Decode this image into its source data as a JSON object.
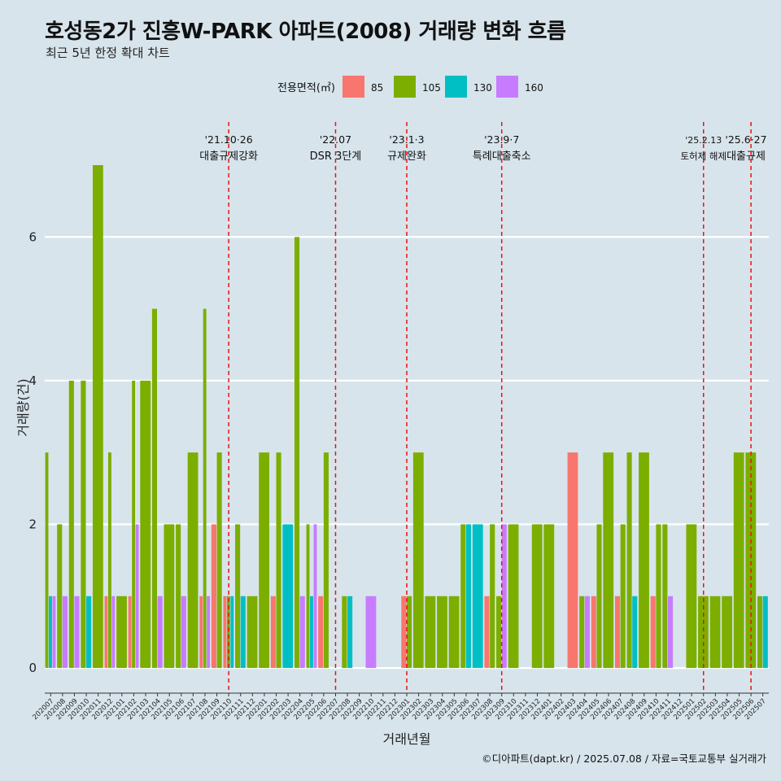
{
  "title": "호성동2가 진흥W-PARK 아파트(2008) 거래량 변화 흐름",
  "subtitle": "최근 5년 한정 확대 차트",
  "footer": "©디아파트(dapt.kr) / 2025.07.08 / 자료=국토교통부 실거래가",
  "chart_data": {
    "type": "bar",
    "xlabel": "거래년월",
    "ylabel": "거래량(건)",
    "ylim": [
      -0.35,
      7.6
    ],
    "yticks": [
      0,
      2,
      4,
      6
    ],
    "grid": true,
    "legend": {
      "title": "전용면적(㎡)",
      "placement": "top",
      "entries": [
        {
          "name": "85",
          "color": "#f8766d"
        },
        {
          "name": "105",
          "color": "#7cae00"
        },
        {
          "name": "130",
          "color": "#00bfc4"
        },
        {
          "name": "160",
          "color": "#c77cff"
        }
      ]
    },
    "categories": [
      "202007",
      "202008",
      "202009",
      "202010",
      "202011",
      "202012",
      "202101",
      "202102",
      "202103",
      "202104",
      "202105",
      "202106",
      "202107",
      "202108",
      "202109",
      "202110",
      "202111",
      "202112",
      "202201",
      "202202",
      "202203",
      "202204",
      "202205",
      "202206",
      "202207",
      "202208",
      "202209",
      "202210",
      "202211",
      "202212",
      "202301",
      "202302",
      "202303",
      "202304",
      "202305",
      "202306",
      "202307",
      "202308",
      "202309",
      "202310",
      "202311",
      "202312",
      "202401",
      "202402",
      "202403",
      "202404",
      "202405",
      "202406",
      "202407",
      "202408",
      "202409",
      "202410",
      "202411",
      "202412",
      "202501",
      "202502",
      "202503",
      "202504",
      "202505",
      "202506",
      "202507"
    ],
    "series": [
      {
        "name": "85",
        "color": "#f8766d",
        "values": [
          0,
          0,
          0,
          0,
          0,
          1,
          0,
          1,
          0,
          0,
          0,
          0,
          0,
          1,
          2,
          1,
          0,
          0,
          0,
          1,
          0,
          0,
          0,
          1,
          0,
          0,
          0,
          0,
          0,
          0,
          1,
          0,
          0,
          0,
          0,
          0,
          0,
          1,
          0,
          0,
          0,
          0,
          0,
          0,
          3,
          0,
          1,
          0,
          1,
          0,
          0,
          1,
          0,
          0,
          0,
          0,
          0,
          0,
          0,
          0,
          0
        ]
      },
      {
        "name": "105",
        "color": "#7cae00",
        "values": [
          3,
          2,
          4,
          4,
          7,
          3,
          1,
          4,
          4,
          5,
          2,
          2,
          3,
          5,
          3,
          1,
          2,
          1,
          3,
          3,
          0,
          6,
          2,
          3,
          0,
          1,
          0,
          0,
          0,
          0,
          1,
          3,
          1,
          1,
          1,
          2,
          0,
          2,
          1,
          2,
          0,
          2,
          2,
          0,
          0,
          1,
          2,
          3,
          2,
          3,
          3,
          2,
          2,
          0,
          2,
          1,
          1,
          1,
          3,
          3,
          1
        ]
      },
      {
        "name": "130",
        "color": "#00bfc4",
        "values": [
          1,
          0,
          0,
          1,
          0,
          0,
          0,
          0,
          0,
          0,
          0,
          0,
          0,
          0,
          0,
          1,
          1,
          0,
          0,
          0,
          2,
          0,
          1,
          0,
          0,
          1,
          0,
          0,
          0,
          0,
          0,
          0,
          0,
          0,
          0,
          2,
          2,
          0,
          0,
          0,
          0,
          0,
          0,
          0,
          0,
          0,
          0,
          0,
          0,
          1,
          0,
          0,
          0,
          0,
          0,
          0,
          0,
          0,
          0,
          0,
          1
        ]
      },
      {
        "name": "160",
        "color": "#c77cff",
        "values": [
          1,
          1,
          1,
          0,
          0,
          1,
          0,
          2,
          0,
          1,
          0,
          1,
          0,
          1,
          0,
          0,
          0,
          0,
          0,
          0,
          0,
          1,
          2,
          0,
          0,
          0,
          0,
          1,
          0,
          0,
          0,
          0,
          0,
          0,
          0,
          0,
          0,
          0,
          2,
          0,
          0,
          0,
          0,
          0,
          0,
          1,
          0,
          0,
          0,
          0,
          0,
          0,
          1,
          0,
          0,
          0,
          0,
          0,
          0,
          0,
          0
        ]
      }
    ],
    "annotations": [
      {
        "x": "202110",
        "date": "'21.10·26",
        "label": "대출규제강화"
      },
      {
        "x": "202207",
        "date": "'22.07",
        "label": "DSR 3단계"
      },
      {
        "x": "202301",
        "date": "'23.1·3",
        "label": "규제완화"
      },
      {
        "x": "202309",
        "date": "'23.9·7",
        "label": "특례대출축소"
      },
      {
        "x": "202502",
        "date": "'25.2.13",
        "label": "토허제 해제"
      },
      {
        "x": "202506",
        "date": "'25.6·27",
        "label": "대출규제"
      }
    ]
  }
}
